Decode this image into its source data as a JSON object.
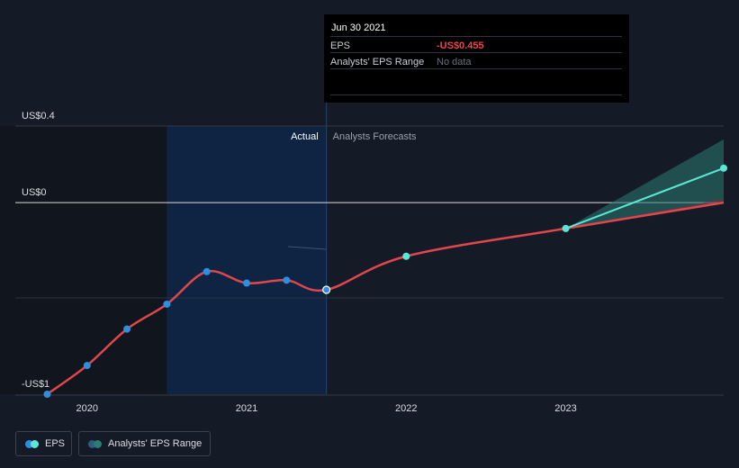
{
  "chart_data": {
    "type": "line",
    "y_axis": {
      "ticks": [
        {
          "label": "US$0.4",
          "value": 0.4
        },
        {
          "label": "US$0",
          "value": 0
        },
        {
          "label": "-US$1",
          "value": -1
        }
      ],
      "ylim": [
        -1.0,
        0.4
      ]
    },
    "x_axis": {
      "ticks": [
        {
          "label": "2020",
          "value": 2020.0
        },
        {
          "label": "2021",
          "value": 2021.0
        },
        {
          "label": "2022",
          "value": 2022.0
        },
        {
          "label": "2023",
          "value": 2023.0
        }
      ],
      "xlim": [
        2019.55,
        2023.99
      ]
    },
    "regions": {
      "actual_label": "Actual",
      "forecast_label": "Analysts Forecasts",
      "divider_x": 2021.5,
      "highlight_start": 2020.5
    },
    "series": [
      {
        "name": "EPS",
        "color": "#e0474c",
        "actual": [
          {
            "x": 2019.75,
            "y": -1.0
          },
          {
            "x": 2020.0,
            "y": -0.85
          },
          {
            "x": 2020.25,
            "y": -0.66
          },
          {
            "x": 2020.5,
            "y": -0.53
          },
          {
            "x": 2020.75,
            "y": -0.36
          },
          {
            "x": 2021.0,
            "y": -0.42
          },
          {
            "x": 2021.25,
            "y": -0.405
          },
          {
            "x": 2021.5,
            "y": -0.455
          }
        ],
        "forecast": [
          {
            "x": 2022.0,
            "y": -0.28
          },
          {
            "x": 2023.0,
            "y": -0.135
          },
          {
            "x": 2023.99,
            "y": 0.18
          }
        ]
      }
    ],
    "range_band": {
      "name": "Analysts' EPS Range",
      "start": {
        "x": 2023.0,
        "y": -0.135
      },
      "end": {
        "x": 2023.99,
        "high": 0.33,
        "low": 0.0
      }
    },
    "colors": {
      "actual": "#e0474c",
      "forecast_line": "#59e8d5",
      "point": "#2e8fe0",
      "forecast_point": "#59e8d5",
      "band": "#2c7a73",
      "highlight": "#0e2442"
    }
  },
  "tooltip": {
    "date": "Jun 30 2021",
    "eps_label": "EPS",
    "eps_value": "-US$0.455",
    "eps_color": "#e8474c",
    "range_label": "Analysts' EPS Range",
    "range_value": "No data"
  },
  "legend": {
    "eps_label": "EPS",
    "range_label": "Analysts' EPS Range"
  }
}
